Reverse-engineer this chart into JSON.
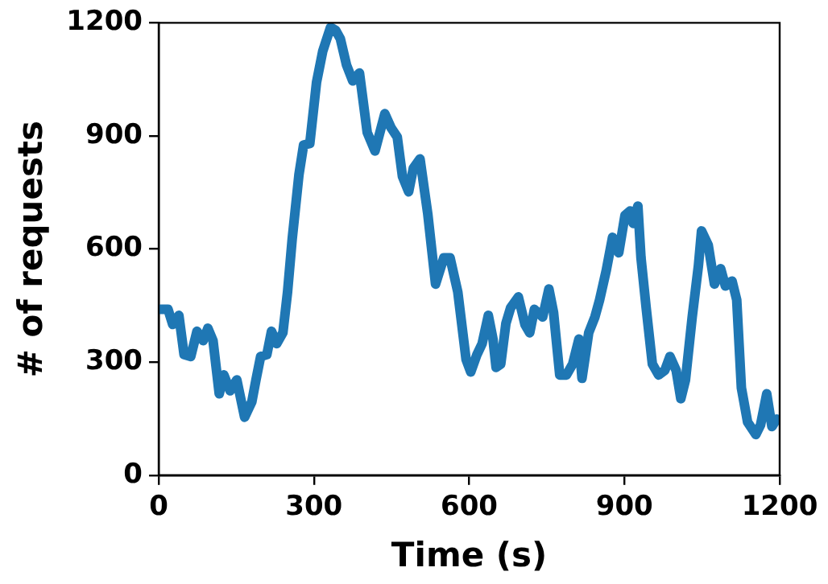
{
  "chart_data": {
    "type": "line",
    "xlabel": "Time (s)",
    "ylabel": "# of requests",
    "x": [
      3,
      18,
      27,
      39,
      49,
      62,
      74,
      86,
      95,
      105,
      117,
      126,
      138,
      151,
      166,
      180,
      188,
      197,
      209,
      218,
      228,
      240,
      249,
      258,
      271,
      280,
      292,
      305,
      317,
      332,
      342,
      351,
      363,
      375,
      388,
      403,
      418,
      437,
      449,
      461,
      471,
      483,
      492,
      505,
      520,
      535,
      551,
      563,
      578,
      594,
      603,
      615,
      625,
      637,
      646,
      652,
      661,
      671,
      680,
      695,
      708,
      717,
      726,
      742,
      754,
      763,
      775,
      788,
      800,
      812,
      818,
      831,
      843,
      852,
      865,
      877,
      889,
      901,
      911,
      917,
      926,
      932,
      942,
      954,
      966,
      978,
      988,
      1000,
      1009,
      1018,
      1031,
      1043,
      1049,
      1062,
      1074,
      1086,
      1095,
      1108,
      1117,
      1126,
      1138,
      1154,
      1163,
      1175,
      1185,
      1194
    ],
    "series": [
      {
        "color": "#1f77b4",
        "values": [
          440,
          440,
          400,
          424,
          320,
          315,
          382,
          357,
          390,
          357,
          216,
          266,
          224,
          253,
          154,
          195,
          253,
          315,
          320,
          382,
          349,
          378,
          486,
          627,
          797,
          876,
          880,
          1042,
          1125,
          1188,
          1180,
          1158,
          1088,
          1046,
          1067,
          909,
          860,
          959,
          922,
          897,
          793,
          752,
          814,
          839,
          693,
          507,
          577,
          577,
          486,
          307,
          274,
          320,
          349,
          424,
          361,
          286,
          295,
          403,
          444,
          473,
          399,
          378,
          440,
          420,
          494,
          432,
          266,
          266,
          295,
          361,
          257,
          378,
          420,
          465,
          544,
          631,
          590,
          689,
          701,
          668,
          714,
          577,
          444,
          295,
          266,
          278,
          315,
          278,
          203,
          253,
          420,
          556,
          648,
          610,
          507,
          548,
          502,
          515,
          465,
          232,
          141,
          108,
          133,
          216,
          129,
          149
        ]
      }
    ],
    "xlim": [
      0,
      1200
    ],
    "xticks": [
      0,
      300,
      600,
      900,
      1200
    ],
    "ylim": [
      0,
      1200
    ],
    "yticks": [
      0,
      300,
      600,
      900,
      1200
    ],
    "grid": false,
    "legend": false,
    "marker": "none",
    "line_style": "solid"
  }
}
